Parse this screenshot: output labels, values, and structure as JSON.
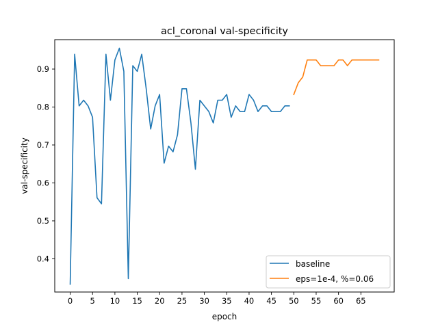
{
  "chart_data": {
    "type": "line",
    "title": "acl_coronal val-specificity",
    "xlabel": "epoch",
    "ylabel": "val-specificity",
    "xlim": [
      -3.45,
      72.45
    ],
    "ylim": [
      0.3125,
      0.9775
    ],
    "xticks": [
      0,
      5,
      10,
      15,
      20,
      25,
      30,
      35,
      40,
      45,
      50,
      55,
      60,
      65
    ],
    "yticks": [
      0.4,
      0.5,
      0.6,
      0.7,
      0.8,
      0.9
    ],
    "grid": false,
    "legend_position": "lower-right",
    "series": [
      {
        "name": "baseline",
        "color": "#1f77b4",
        "x": [
          0,
          1,
          2,
          3,
          4,
          5,
          6,
          7,
          8,
          9,
          10,
          11,
          12,
          13,
          14,
          15,
          16,
          17,
          18,
          19,
          20,
          21,
          22,
          23,
          24,
          25,
          26,
          27,
          28,
          29,
          30,
          31,
          32,
          33,
          34,
          35,
          36,
          37,
          38,
          39,
          40,
          41,
          42,
          43,
          44,
          45,
          46,
          47,
          48,
          49
        ],
        "y": [
          0.333,
          0.939,
          0.803,
          0.818,
          0.803,
          0.773,
          0.561,
          0.545,
          0.939,
          0.818,
          0.924,
          0.955,
          0.894,
          0.348,
          0.909,
          0.894,
          0.939,
          0.848,
          0.742,
          0.803,
          0.833,
          0.652,
          0.697,
          0.682,
          0.727,
          0.848,
          0.848,
          0.758,
          0.636,
          0.818,
          0.803,
          0.788,
          0.758,
          0.818,
          0.818,
          0.833,
          0.773,
          0.803,
          0.788,
          0.788,
          0.833,
          0.818,
          0.788,
          0.803,
          0.803,
          0.788,
          0.788,
          0.788,
          0.803,
          0.803
        ]
      },
      {
        "name": "eps=1e-4, %=0.06",
        "color": "#ff7f0e",
        "x": [
          50,
          51,
          52,
          53,
          54,
          55,
          56,
          57,
          58,
          59,
          60,
          61,
          62,
          63,
          64,
          65,
          66,
          67,
          68,
          69
        ],
        "y": [
          0.833,
          0.864,
          0.879,
          0.924,
          0.924,
          0.924,
          0.909,
          0.909,
          0.909,
          0.909,
          0.924,
          0.924,
          0.909,
          0.924,
          0.924,
          0.924,
          0.924,
          0.924,
          0.924,
          0.924
        ]
      }
    ]
  }
}
